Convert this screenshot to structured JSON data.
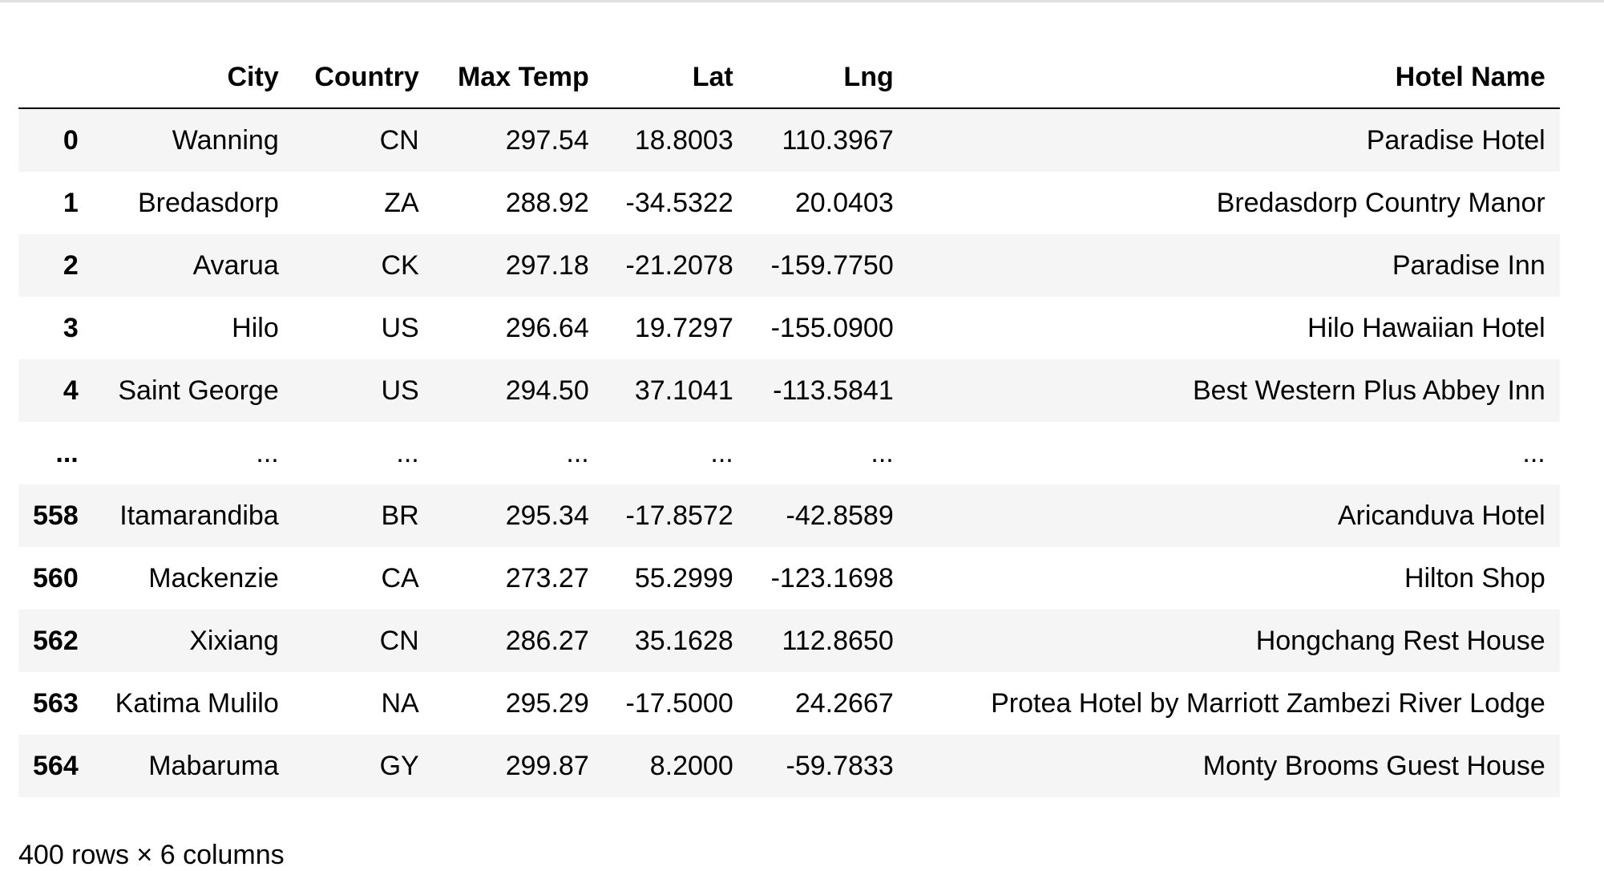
{
  "table": {
    "columns": [
      "",
      "City",
      "Country",
      "Max Temp",
      "Lat",
      "Lng",
      "Hotel Name"
    ],
    "rows": [
      [
        "0",
        "Wanning",
        "CN",
        "297.54",
        "18.8003",
        "110.3967",
        "Paradise Hotel"
      ],
      [
        "1",
        "Bredasdorp",
        "ZA",
        "288.92",
        "-34.5322",
        "20.0403",
        "Bredasdorp Country Manor"
      ],
      [
        "2",
        "Avarua",
        "CK",
        "297.18",
        "-21.2078",
        "-159.7750",
        "Paradise Inn"
      ],
      [
        "3",
        "Hilo",
        "US",
        "296.64",
        "19.7297",
        "-155.0900",
        "Hilo Hawaiian Hotel"
      ],
      [
        "4",
        "Saint George",
        "US",
        "294.50",
        "37.1041",
        "-113.5841",
        "Best Western Plus Abbey Inn"
      ],
      [
        "...",
        "...",
        "...",
        "...",
        "...",
        "...",
        "..."
      ],
      [
        "558",
        "Itamarandiba",
        "BR",
        "295.34",
        "-17.8572",
        "-42.8589",
        "Aricanduva Hotel"
      ],
      [
        "560",
        "Mackenzie",
        "CA",
        "273.27",
        "55.2999",
        "-123.1698",
        "Hilton Shop"
      ],
      [
        "562",
        "Xixiang",
        "CN",
        "286.27",
        "35.1628",
        "112.8650",
        "Hongchang Rest House"
      ],
      [
        "563",
        "Katima Mulilo",
        "NA",
        "295.29",
        "-17.5000",
        "24.2667",
        "Protea Hotel by Marriott Zambezi River Lodge"
      ],
      [
        "564",
        "Mabaruma",
        "GY",
        "299.87",
        "8.2000",
        "-59.7833",
        "Monty Brooms Guest House"
      ]
    ]
  },
  "shape_caption": "400 rows × 6 columns"
}
